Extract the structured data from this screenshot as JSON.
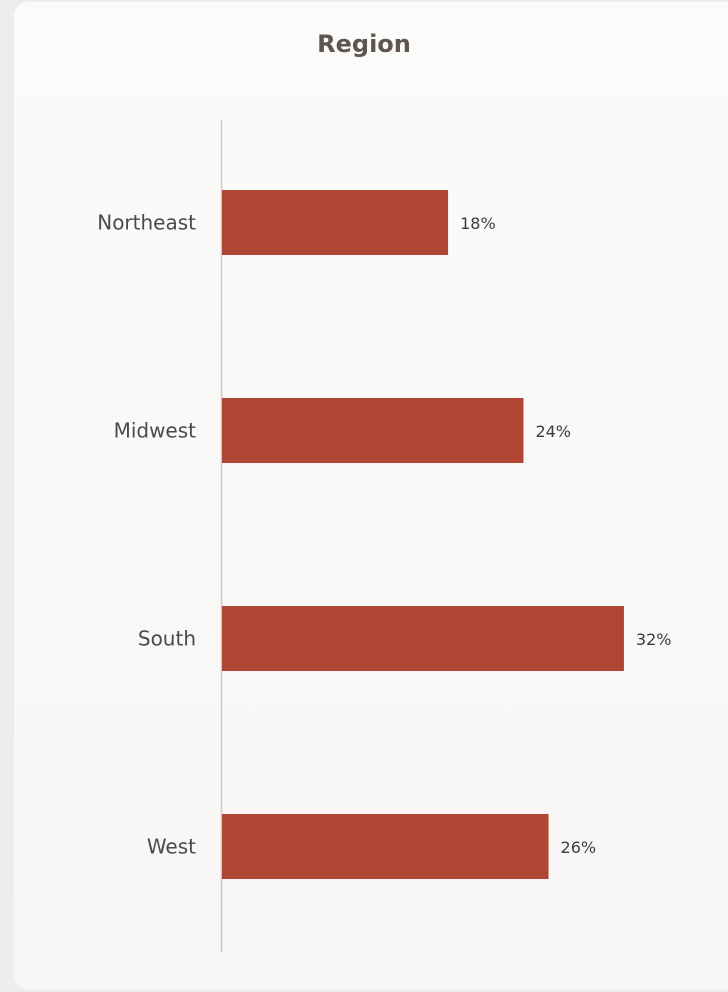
{
  "chart_data": {
    "type": "bar",
    "orientation": "horizontal",
    "title": "Region",
    "categories": [
      "Northeast",
      "Midwest",
      "South",
      "West"
    ],
    "values": [
      18,
      24,
      32,
      26
    ],
    "value_labels": [
      "18%",
      "24%",
      "32%",
      "26%"
    ],
    "unit": "%",
    "xlabel": "",
    "ylabel": "",
    "grid": false,
    "legend": "none",
    "bar_color": "#b04533"
  }
}
